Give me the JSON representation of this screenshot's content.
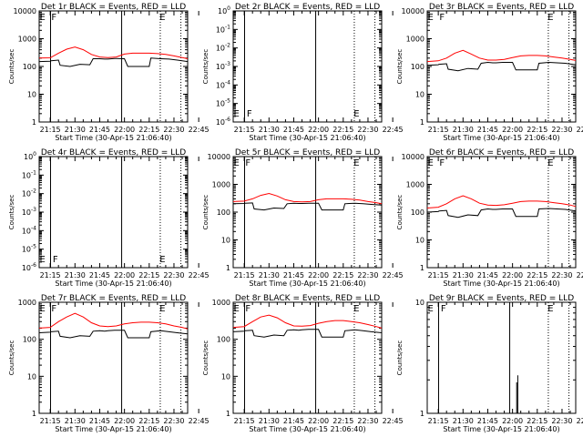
{
  "figure": {
    "x_ticks": [
      "21:15",
      "21:30",
      "21:45",
      "22:00",
      "22:15",
      "22:30",
      "22:45"
    ],
    "xlabel": "Start Time (30-Apr-15 21:06:40)",
    "ylabel": "Counts/sec",
    "colors": {
      "events": "#000000",
      "lld": "#ff0000",
      "axes": "#000000"
    }
  },
  "chart_data": [
    {
      "type": "line",
      "title": "Det 1r BLACK = Events, RED = LLD",
      "yscale": "log",
      "ylim": [
        1,
        10000
      ],
      "ytick_exps": [
        0,
        1,
        2,
        3,
        4
      ],
      "ytick_style": "plain",
      "xlim_minutes": [
        8.3,
        98.3
      ],
      "series": [
        {
          "name": "Events",
          "color": "#000000",
          "x": [
            8.3,
            15,
            15.5,
            20,
            21,
            27,
            33,
            39,
            41,
            45,
            48,
            50,
            54,
            60,
            62,
            75,
            76,
            82,
            87,
            92,
            98.3
          ],
          "y": [
            150,
            155,
            160,
            170,
            110,
            100,
            120,
            115,
            190,
            190,
            185,
            185,
            195,
            190,
            100,
            100,
            200,
            190,
            185,
            170,
            150
          ]
        },
        {
          "name": "LLD",
          "color": "#ff0000",
          "x": [
            8.3,
            15,
            20,
            25,
            30,
            35,
            40,
            45,
            50,
            55,
            60,
            65,
            70,
            75,
            80,
            85,
            90,
            95,
            98.3
          ],
          "y": [
            200,
            205,
            300,
            420,
            500,
            400,
            270,
            220,
            210,
            220,
            280,
            300,
            300,
            300,
            290,
            270,
            240,
            210,
            190
          ]
        }
      ],
      "markers": [
        {
          "label": "E",
          "x_min": 8.6
        },
        {
          "label": "F",
          "x_min": 15.7
        },
        {
          "label": "E",
          "x_min": 81.3
        }
      ],
      "solid_lines_min": [
        15.2,
        58.3
      ],
      "dotted_lines_min": [
        81.7,
        94.2
      ]
    },
    {
      "type": "line",
      "title": "Det 2r BLACK = Events, RED = LLD",
      "yscale": "log",
      "ylim": [
        1e-06,
        1
      ],
      "ytick_exps": [
        -6,
        -5,
        -4,
        -3,
        -2,
        -1,
        0
      ],
      "ytick_style": "power",
      "xlim_minutes": [
        8.3,
        98.3
      ],
      "series": [],
      "markers": [
        {
          "label": "E",
          "x_min": 8.6
        },
        {
          "label": "F",
          "x_min": 16.5
        },
        {
          "label": "E",
          "x_min": 81.3
        }
      ],
      "solid_lines_min": [
        15.2,
        58.3
      ],
      "dotted_lines_min": [
        81.7,
        94.2
      ]
    },
    {
      "type": "line",
      "title": "Det 3r BLACK = Events, RED = LLD",
      "yscale": "log",
      "ylim": [
        1,
        10000
      ],
      "ytick_exps": [
        0,
        1,
        2,
        3,
        4
      ],
      "ytick_style": "plain",
      "xlim_minutes": [
        8.3,
        98.3
      ],
      "series": [
        {
          "name": "Events",
          "color": "#000000",
          "x": [
            8.3,
            15,
            15.5,
            20,
            21,
            27,
            33,
            39,
            41,
            45,
            48,
            50,
            54,
            60,
            62,
            75,
            76,
            82,
            87,
            92,
            98.3
          ],
          "y": [
            110,
            115,
            120,
            125,
            80,
            70,
            85,
            80,
            130,
            140,
            135,
            135,
            140,
            140,
            75,
            75,
            130,
            140,
            135,
            130,
            115
          ]
        },
        {
          "name": "LLD",
          "color": "#ff0000",
          "x": [
            8.3,
            15,
            20,
            25,
            30,
            35,
            40,
            45,
            50,
            55,
            60,
            65,
            70,
            75,
            80,
            85,
            90,
            95,
            98.3
          ],
          "y": [
            150,
            160,
            200,
            300,
            380,
            280,
            200,
            170,
            170,
            180,
            210,
            240,
            250,
            250,
            240,
            220,
            200,
            180,
            165
          ]
        }
      ],
      "markers": [
        {
          "label": "E",
          "x_min": 8.6
        },
        {
          "label": "F",
          "x_min": 15.7
        },
        {
          "label": "E",
          "x_min": 81.3
        }
      ],
      "solid_lines_min": [],
      "dotted_lines_min": [
        81.7,
        94.2
      ]
    },
    {
      "type": "line",
      "title": "Det 4r BLACK = Events, RED = LLD",
      "yscale": "log",
      "ylim": [
        1e-06,
        1
      ],
      "ytick_exps": [
        -6,
        -5,
        -4,
        -3,
        -2,
        -1,
        0
      ],
      "ytick_style": "power",
      "xlim_minutes": [
        8.3,
        98.3
      ],
      "series": [],
      "markers": [
        {
          "label": "E",
          "x_min": 8.6
        },
        {
          "label": "F",
          "x_min": 16.5
        },
        {
          "label": "E",
          "x_min": 81.3
        }
      ],
      "solid_lines_min": [
        15.2,
        58.3
      ],
      "dotted_lines_min": [
        81.7,
        94.2
      ]
    },
    {
      "type": "line",
      "title": "Det 5r BLACK = Events, RED = LLD",
      "yscale": "log",
      "ylim": [
        1,
        10000
      ],
      "ytick_exps": [
        0,
        1,
        2,
        3,
        4
      ],
      "ytick_style": "plain",
      "xlim_minutes": [
        8.3,
        98.3
      ],
      "series": [
        {
          "name": "Events",
          "color": "#000000",
          "x": [
            8.3,
            15,
            15.5,
            20,
            21,
            27,
            33,
            39,
            41,
            45,
            48,
            50,
            54,
            60,
            62,
            75,
            76,
            82,
            87,
            92,
            98.3
          ],
          "y": [
            200,
            205,
            210,
            215,
            130,
            120,
            140,
            135,
            200,
            210,
            205,
            205,
            210,
            210,
            120,
            120,
            200,
            210,
            200,
            190,
            180
          ]
        },
        {
          "name": "LLD",
          "color": "#ff0000",
          "x": [
            8.3,
            15,
            20,
            25,
            30,
            35,
            40,
            45,
            50,
            55,
            60,
            65,
            70,
            75,
            80,
            85,
            90,
            95,
            98.3
          ],
          "y": [
            240,
            250,
            300,
            400,
            470,
            380,
            280,
            240,
            235,
            240,
            280,
            300,
            300,
            300,
            290,
            270,
            240,
            220,
            200
          ]
        }
      ],
      "markers": [
        {
          "label": "E",
          "x_min": 8.6
        },
        {
          "label": "F",
          "x_min": 15.7
        },
        {
          "label": "E",
          "x_min": 81.3
        }
      ],
      "solid_lines_min": [
        15.2,
        58.3
      ],
      "dotted_lines_min": [
        81.7,
        94.2
      ]
    },
    {
      "type": "line",
      "title": "Det 6r BLACK = Events, RED = LLD",
      "yscale": "log",
      "ylim": [
        1,
        10000
      ],
      "ytick_exps": [
        0,
        1,
        2,
        3,
        4
      ],
      "ytick_style": "plain",
      "xlim_minutes": [
        8.3,
        98.3
      ],
      "series": [
        {
          "name": "Events",
          "color": "#000000",
          "x": [
            8.3,
            15,
            15.5,
            20,
            21,
            27,
            33,
            39,
            41,
            45,
            48,
            50,
            54,
            60,
            62,
            75,
            76,
            82,
            87,
            92,
            98.3
          ],
          "y": [
            100,
            105,
            110,
            115,
            75,
            65,
            80,
            75,
            120,
            130,
            125,
            125,
            130,
            130,
            70,
            70,
            130,
            135,
            130,
            125,
            110
          ]
        },
        {
          "name": "LLD",
          "color": "#ff0000",
          "x": [
            8.3,
            15,
            20,
            25,
            30,
            35,
            40,
            45,
            50,
            55,
            60,
            65,
            70,
            75,
            80,
            85,
            90,
            95,
            98.3
          ],
          "y": [
            140,
            150,
            200,
            300,
            390,
            300,
            210,
            180,
            175,
            185,
            210,
            240,
            250,
            250,
            240,
            220,
            200,
            180,
            160
          ]
        }
      ],
      "markers": [
        {
          "label": "E",
          "x_min": 8.6
        },
        {
          "label": "F",
          "x_min": 15.7
        },
        {
          "label": "E",
          "x_min": 81.3
        }
      ],
      "solid_lines_min": [],
      "dotted_lines_min": [
        81.7,
        94.2
      ]
    },
    {
      "type": "line",
      "title": "Det 7r BLACK = Events, RED = LLD",
      "yscale": "log",
      "ylim": [
        1,
        1000
      ],
      "ytick_exps": [
        0,
        1,
        2,
        3
      ],
      "ytick_style": "plain",
      "xlim_minutes": [
        8.3,
        98.3
      ],
      "series": [
        {
          "name": "Events",
          "color": "#000000",
          "x": [
            8.3,
            15,
            15.5,
            20,
            21,
            27,
            33,
            39,
            41,
            45,
            48,
            50,
            54,
            60,
            62,
            75,
            76,
            82,
            87,
            92,
            98.3
          ],
          "y": [
            150,
            155,
            160,
            165,
            120,
            110,
            125,
            120,
            165,
            170,
            165,
            170,
            175,
            175,
            110,
            110,
            160,
            170,
            160,
            150,
            140
          ]
        },
        {
          "name": "LLD",
          "color": "#ff0000",
          "x": [
            8.3,
            15,
            20,
            25,
            30,
            35,
            40,
            45,
            50,
            55,
            60,
            65,
            70,
            75,
            80,
            85,
            90,
            95,
            98.3
          ],
          "y": [
            200,
            210,
            300,
            400,
            500,
            400,
            280,
            230,
            220,
            230,
            260,
            280,
            290,
            290,
            280,
            260,
            230,
            210,
            190
          ]
        }
      ],
      "markers": [
        {
          "label": "E",
          "x_min": 8.6
        },
        {
          "label": "F",
          "x_min": 15.7
        },
        {
          "label": "E",
          "x_min": 81.3
        }
      ],
      "solid_lines_min": [
        15.2,
        58.3
      ],
      "dotted_lines_min": [
        81.7,
        94.2
      ]
    },
    {
      "type": "line",
      "title": "Det 8r BLACK = Events, RED = LLD",
      "yscale": "log",
      "ylim": [
        1,
        1000
      ],
      "ytick_exps": [
        0,
        1,
        2,
        3
      ],
      "ytick_style": "plain",
      "xlim_minutes": [
        8.3,
        98.3
      ],
      "series": [
        {
          "name": "Events",
          "color": "#000000",
          "x": [
            8.3,
            15,
            15.5,
            20,
            21,
            27,
            33,
            39,
            41,
            45,
            48,
            50,
            54,
            60,
            62,
            75,
            76,
            82,
            87,
            92,
            98.3
          ],
          "y": [
            160,
            165,
            170,
            175,
            125,
            115,
            130,
            125,
            175,
            180,
            175,
            180,
            185,
            185,
            115,
            115,
            170,
            180,
            170,
            160,
            150
          ]
        },
        {
          "name": "LLD",
          "color": "#ff0000",
          "x": [
            8.3,
            15,
            20,
            25,
            30,
            35,
            40,
            45,
            50,
            55,
            60,
            65,
            70,
            75,
            80,
            85,
            90,
            95,
            98.3
          ],
          "y": [
            210,
            220,
            300,
            400,
            450,
            380,
            280,
            230,
            225,
            235,
            270,
            300,
            320,
            320,
            300,
            280,
            250,
            220,
            200
          ]
        }
      ],
      "markers": [
        {
          "label": "E",
          "x_min": 8.6
        },
        {
          "label": "F",
          "x_min": 15.7
        },
        {
          "label": "E",
          "x_min": 81.3
        }
      ],
      "solid_lines_min": [
        15.2,
        58.3
      ],
      "dotted_lines_min": [
        81.7,
        94.2
      ]
    },
    {
      "type": "line",
      "title": "Det 9r BLACK = Events, RED = LLD",
      "yscale": "log",
      "ylim": [
        1,
        10
      ],
      "ytick_exps": [
        0,
        1
      ],
      "ytick_style": "plain",
      "xlim_minutes": [
        8.3,
        98.3
      ],
      "series": [
        {
          "name": "Events",
          "color": "#000000",
          "x": [
            62.5,
            62.5,
            62.5,
            63.2,
            63.2,
            63.2
          ],
          "y": [
            1,
            1.9,
            1,
            1,
            2.2,
            1
          ]
        }
      ],
      "markers": [
        {
          "label": "E",
          "x_min": 8.6
        },
        {
          "label": "F",
          "x_min": 16.5
        },
        {
          "label": "E",
          "x_min": 81.3
        }
      ],
      "solid_lines_min": [
        15.2,
        58.3
      ],
      "dotted_lines_min": [
        81.7,
        94.2
      ]
    }
  ]
}
